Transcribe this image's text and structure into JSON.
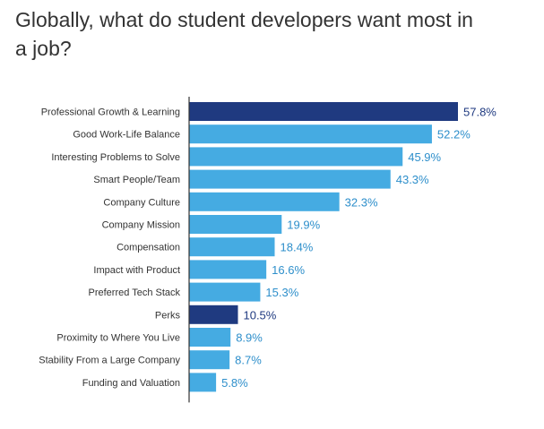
{
  "chart_data": {
    "type": "bar",
    "orientation": "horizontal",
    "title": "Globally, what do student developers want most in a job?",
    "categories": [
      "Professional Growth & Learning",
      "Good Work-Life Balance",
      "Interesting Problems to Solve",
      "Smart People/Team",
      "Company Culture",
      "Company Mission",
      "Compensation",
      "Impact with Product",
      "Preferred Tech Stack",
      "Perks",
      "Proximity to Where You Live",
      "Stability From a Large Company",
      "Funding and Valuation"
    ],
    "values": [
      57.8,
      52.2,
      45.9,
      43.3,
      32.3,
      19.9,
      18.4,
      16.6,
      15.3,
      10.5,
      8.9,
      8.7,
      5.8
    ],
    "value_labels": [
      "57.8%",
      "52.2%",
      "45.9%",
      "43.3%",
      "32.3%",
      "19.9%",
      "18.4%",
      "16.6%",
      "15.3%",
      "10.5%",
      "8.9%",
      "8.7%",
      "5.8%"
    ],
    "highlighted": [
      true,
      false,
      false,
      false,
      false,
      false,
      false,
      false,
      false,
      true,
      false,
      false,
      false
    ],
    "xlim": [
      0,
      60
    ],
    "grid": false,
    "legend": "none",
    "colors": {
      "bar": "#45ABE2",
      "highlight": "#1F3A80",
      "value_label": "#2E8FCB",
      "highlight_label": "#1F3A80",
      "axis": "#333333"
    }
  }
}
